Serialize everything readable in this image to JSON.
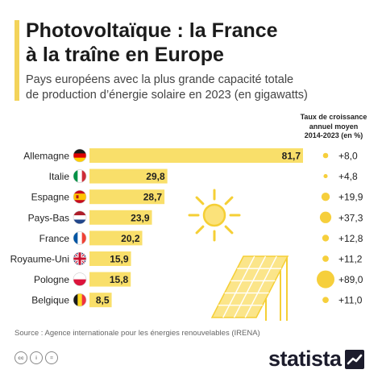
{
  "header": {
    "title_line1": "Photovoltaïque : la France",
    "title_line2": "à la traîne en Europe",
    "subtitle_line1": "Pays européens avec la plus grande capacité totale",
    "subtitle_line2": "de production d’énergie solaire en 2023 (en gigawatts)",
    "growth_header_line1": "Taux de croissance",
    "growth_header_line2": "annuel moyen",
    "growth_header_line3": "2014-2023 (en %)"
  },
  "colors": {
    "bar": "#f9df6a",
    "bubble": "#f6cf3c",
    "accent": "#f3d35a",
    "text": "#1f1f1f"
  },
  "chart_data": {
    "type": "bar",
    "categories": [
      "Allemagne",
      "Italie",
      "Espagne",
      "Pays-Bas",
      "France",
      "Royaume-Uni",
      "Pologne",
      "Belgique"
    ],
    "values": [
      81.7,
      29.8,
      28.7,
      23.9,
      20.2,
      15.9,
      15.8,
      8.5
    ],
    "value_labels": [
      "81,7",
      "29,8",
      "28,7",
      "23,9",
      "20,2",
      "15,9",
      "15,8",
      "8,5"
    ],
    "unit": "gigawatts",
    "flags": [
      "germany-flag",
      "italy-flag",
      "spain-flag",
      "netherlands-flag",
      "france-flag",
      "uk-flag",
      "poland-flag",
      "belgium-flag"
    ],
    "growth_rates": [
      8.0,
      4.8,
      19.9,
      37.3,
      12.8,
      11.2,
      89.0,
      11.0
    ],
    "growth_labels": [
      "+8,0",
      "+4,8",
      "+19,9",
      "+37,3",
      "+12,8",
      "+11,2",
      "+89,0",
      "+11,0"
    ]
  },
  "footer": {
    "source": "Source : Agence internationale pour les énergies renouvelables (IRENA)",
    "cc_icons": [
      "cc",
      "i",
      "="
    ],
    "brand": "statista"
  },
  "illustration": {
    "icons": [
      "sun-icon",
      "solar-panel-icon"
    ]
  }
}
